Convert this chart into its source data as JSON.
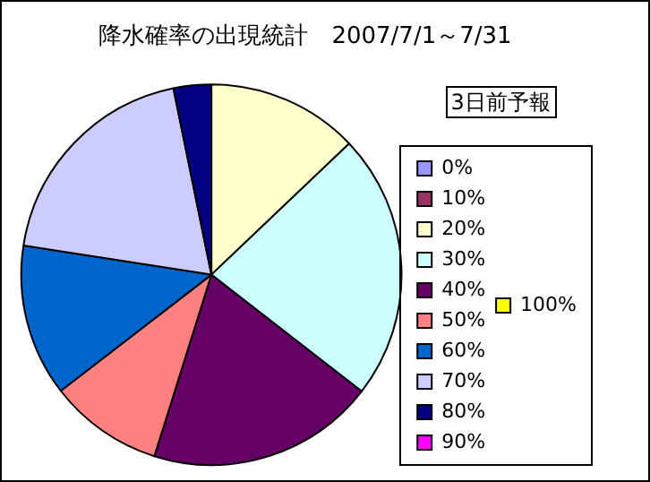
{
  "chart_data": {
    "type": "pie",
    "title": "降水確率の出現統計　2007/7/1～7/31",
    "legend_title": "3日前予報",
    "legend": "right",
    "categories": [
      "0%",
      "10%",
      "20%",
      "30%",
      "40%",
      "50%",
      "60%",
      "70%",
      "80%",
      "90%",
      "100%"
    ],
    "values": [
      0,
      0,
      12.9,
      22.6,
      19.35,
      9.7,
      12.9,
      19.35,
      3.2,
      0,
      0
    ],
    "colors": [
      "#9999ff",
      "#993366",
      "#ffffcc",
      "#ccffff",
      "#660066",
      "#ff8080",
      "#0066cc",
      "#ccccff",
      "#000080",
      "#ff00ff",
      "#ffff00"
    ]
  }
}
